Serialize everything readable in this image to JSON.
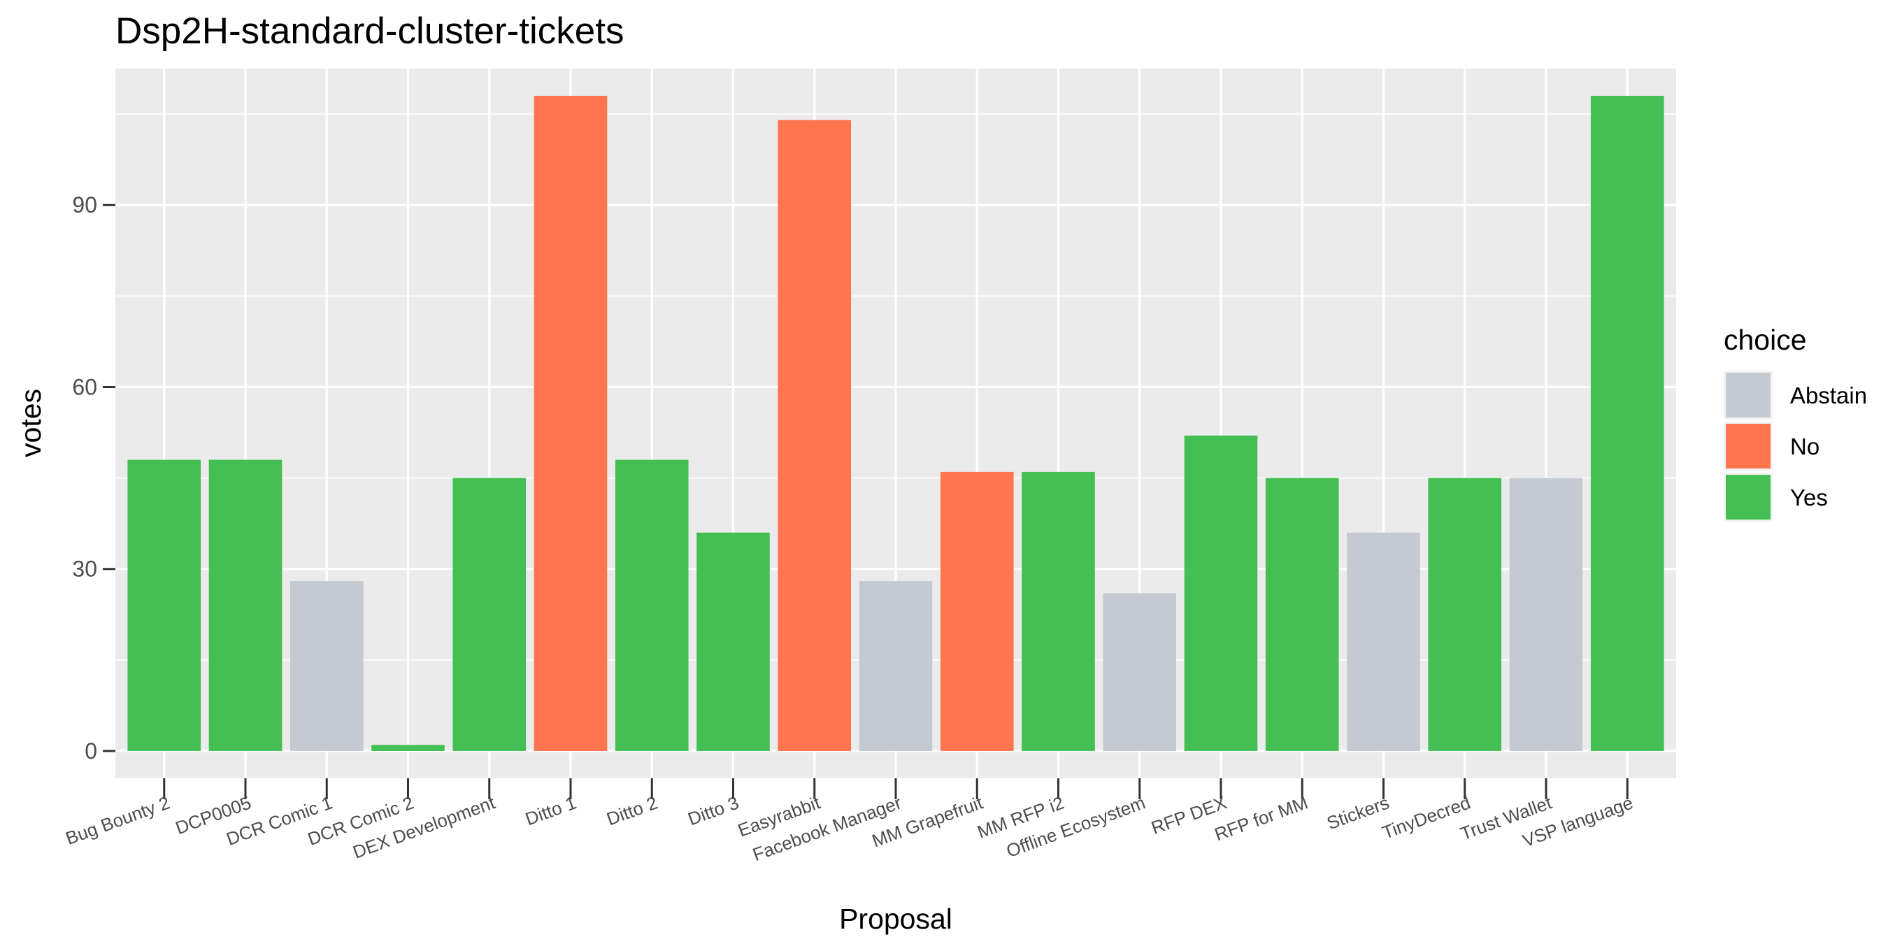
{
  "chart_data": {
    "type": "bar",
    "title": "Dsp2H-standard-cluster-tickets",
    "xlabel": "Proposal",
    "ylabel": "votes",
    "ylim": [
      -4.5,
      112.5
    ],
    "yticks": [
      0,
      30,
      60,
      90
    ],
    "grid": true,
    "legend": {
      "title": "choice",
      "position": "right",
      "entries": [
        {
          "label": "Abstain",
          "color": "#c5cad2"
        },
        {
          "label": "No",
          "color": "#ff7550"
        },
        {
          "label": "Yes",
          "color": "#43bf54"
        }
      ]
    },
    "categories": [
      "Bug Bounty 2",
      "DCP0005",
      "DCR Comic 1",
      "DCR Comic 2",
      "DEX Development",
      "Ditto 1",
      "Ditto 2",
      "Ditto 3",
      "Easyrabbit",
      "Facebook Manager",
      "MM Grapefruit",
      "MM RFP i2",
      "Offline Ecosystem",
      "RFP DEX",
      "RFP for MM",
      "Stickers",
      "TinyDecred",
      "Trust Wallet",
      "VSP language"
    ],
    "values": [
      48,
      48,
      28,
      1,
      45,
      108,
      48,
      36,
      104,
      28,
      46,
      46,
      26,
      52,
      45,
      36,
      45,
      45,
      108
    ],
    "choices": [
      "Yes",
      "Yes",
      "Abstain",
      "Yes",
      "Yes",
      "No",
      "Yes",
      "Yes",
      "No",
      "Abstain",
      "No",
      "Yes",
      "Abstain",
      "Yes",
      "Yes",
      "Abstain",
      "Yes",
      "Abstain",
      "Yes"
    ]
  }
}
